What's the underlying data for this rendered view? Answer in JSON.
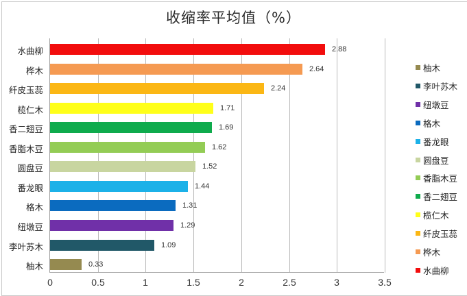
{
  "chart_data": {
    "type": "bar",
    "orientation": "horizontal",
    "title": "收缩率平均值（%）",
    "xlabel": "",
    "ylabel": "",
    "xlim": [
      0,
      3.5
    ],
    "x_ticks": [
      "0",
      "0.5",
      "1",
      "1.5",
      "2",
      "2.5",
      "3",
      "3.5"
    ],
    "grid": true,
    "legend_position": "right",
    "categories": [
      "水曲柳",
      "桦木",
      "纤皮玉蕊",
      "榄仁木",
      "香二翅豆",
      "香脂木豆",
      "圆盘豆",
      "番龙眼",
      "格木",
      "纽墩豆",
      "李叶苏木",
      "柚木"
    ],
    "values": [
      2.88,
      2.64,
      2.24,
      1.71,
      1.69,
      1.62,
      1.52,
      1.44,
      1.31,
      1.29,
      1.09,
      0.33
    ],
    "value_labels": [
      "2.88",
      "2.64",
      "2.24",
      "1.71",
      "1.69",
      "1.62",
      "1.52",
      "1.44",
      "1.31",
      "1.29",
      "1.09",
      "0.33"
    ],
    "colors": [
      "#f20d0d",
      "#f59a52",
      "#fbb715",
      "#ffff1a",
      "#0fab4d",
      "#93cc55",
      "#c8d5a0",
      "#1cb1e8",
      "#0b6bbf",
      "#7030a8",
      "#215868",
      "#958a50"
    ],
    "legend": [
      "柚木",
      "李叶苏木",
      "纽墩豆",
      "格木",
      "番龙眼",
      "圆盘豆",
      "香脂木豆",
      "香二翅豆",
      "榄仁木",
      "纤皮玉蕊",
      "桦木",
      "水曲柳"
    ],
    "legend_colors": [
      "#958a50",
      "#215868",
      "#7030a8",
      "#0b6bbf",
      "#1cb1e8",
      "#c8d5a0",
      "#93cc55",
      "#0fab4d",
      "#ffff1a",
      "#fbb715",
      "#f59a52",
      "#f20d0d"
    ]
  }
}
